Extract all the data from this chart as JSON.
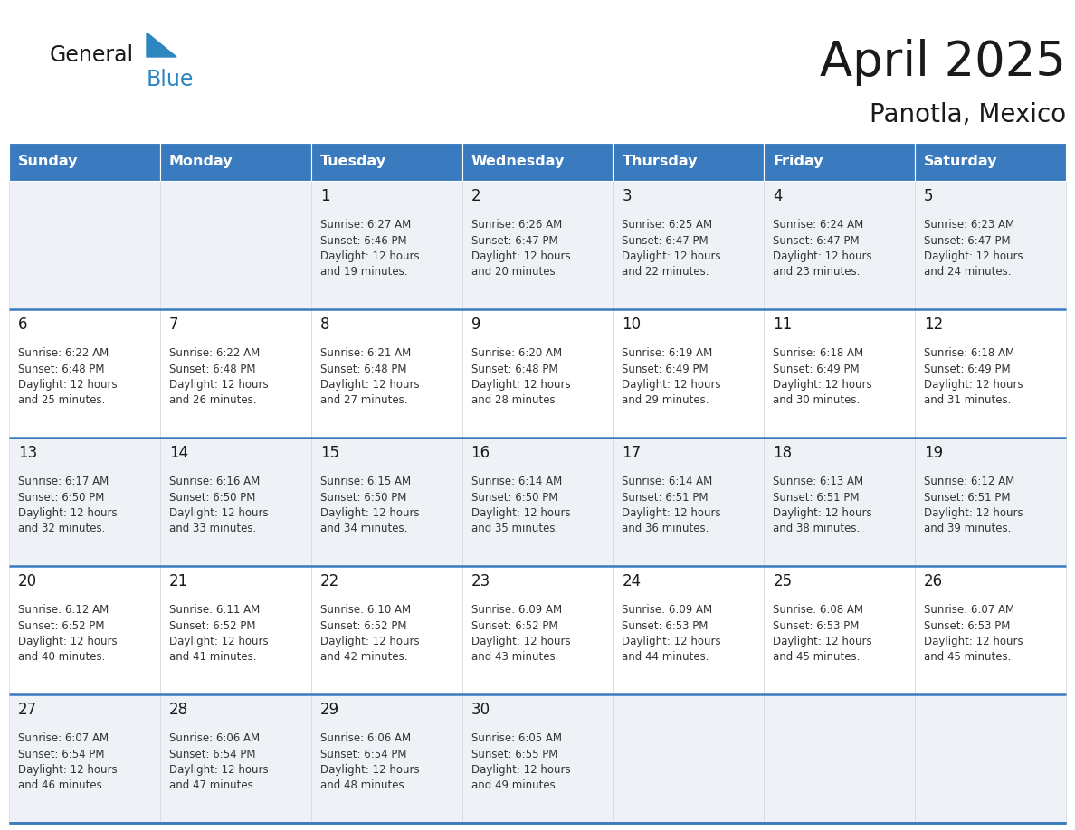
{
  "title": "April 2025",
  "subtitle": "Panotla, Mexico",
  "header_color": "#3a7abf",
  "header_text_color": "#ffffff",
  "cell_bg_even": "#eef2f7",
  "cell_bg_odd": "#ffffff",
  "text_color": "#333333",
  "days_of_week": [
    "Sunday",
    "Monday",
    "Tuesday",
    "Wednesday",
    "Thursday",
    "Friday",
    "Saturday"
  ],
  "weeks": [
    [
      {
        "day": "",
        "sunrise": "",
        "sunset": "",
        "daylight": ""
      },
      {
        "day": "",
        "sunrise": "",
        "sunset": "",
        "daylight": ""
      },
      {
        "day": "1",
        "sunrise": "6:27 AM",
        "sunset": "6:46 PM",
        "daylight": "12 hours\nand 19 minutes."
      },
      {
        "day": "2",
        "sunrise": "6:26 AM",
        "sunset": "6:47 PM",
        "daylight": "12 hours\nand 20 minutes."
      },
      {
        "day": "3",
        "sunrise": "6:25 AM",
        "sunset": "6:47 PM",
        "daylight": "12 hours\nand 22 minutes."
      },
      {
        "day": "4",
        "sunrise": "6:24 AM",
        "sunset": "6:47 PM",
        "daylight": "12 hours\nand 23 minutes."
      },
      {
        "day": "5",
        "sunrise": "6:23 AM",
        "sunset": "6:47 PM",
        "daylight": "12 hours\nand 24 minutes."
      }
    ],
    [
      {
        "day": "6",
        "sunrise": "6:22 AM",
        "sunset": "6:48 PM",
        "daylight": "12 hours\nand 25 minutes."
      },
      {
        "day": "7",
        "sunrise": "6:22 AM",
        "sunset": "6:48 PM",
        "daylight": "12 hours\nand 26 minutes."
      },
      {
        "day": "8",
        "sunrise": "6:21 AM",
        "sunset": "6:48 PM",
        "daylight": "12 hours\nand 27 minutes."
      },
      {
        "day": "9",
        "sunrise": "6:20 AM",
        "sunset": "6:48 PM",
        "daylight": "12 hours\nand 28 minutes."
      },
      {
        "day": "10",
        "sunrise": "6:19 AM",
        "sunset": "6:49 PM",
        "daylight": "12 hours\nand 29 minutes."
      },
      {
        "day": "11",
        "sunrise": "6:18 AM",
        "sunset": "6:49 PM",
        "daylight": "12 hours\nand 30 minutes."
      },
      {
        "day": "12",
        "sunrise": "6:18 AM",
        "sunset": "6:49 PM",
        "daylight": "12 hours\nand 31 minutes."
      }
    ],
    [
      {
        "day": "13",
        "sunrise": "6:17 AM",
        "sunset": "6:50 PM",
        "daylight": "12 hours\nand 32 minutes."
      },
      {
        "day": "14",
        "sunrise": "6:16 AM",
        "sunset": "6:50 PM",
        "daylight": "12 hours\nand 33 minutes."
      },
      {
        "day": "15",
        "sunrise": "6:15 AM",
        "sunset": "6:50 PM",
        "daylight": "12 hours\nand 34 minutes."
      },
      {
        "day": "16",
        "sunrise": "6:14 AM",
        "sunset": "6:50 PM",
        "daylight": "12 hours\nand 35 minutes."
      },
      {
        "day": "17",
        "sunrise": "6:14 AM",
        "sunset": "6:51 PM",
        "daylight": "12 hours\nand 36 minutes."
      },
      {
        "day": "18",
        "sunrise": "6:13 AM",
        "sunset": "6:51 PM",
        "daylight": "12 hours\nand 38 minutes."
      },
      {
        "day": "19",
        "sunrise": "6:12 AM",
        "sunset": "6:51 PM",
        "daylight": "12 hours\nand 39 minutes."
      }
    ],
    [
      {
        "day": "20",
        "sunrise": "6:12 AM",
        "sunset": "6:52 PM",
        "daylight": "12 hours\nand 40 minutes."
      },
      {
        "day": "21",
        "sunrise": "6:11 AM",
        "sunset": "6:52 PM",
        "daylight": "12 hours\nand 41 minutes."
      },
      {
        "day": "22",
        "sunrise": "6:10 AM",
        "sunset": "6:52 PM",
        "daylight": "12 hours\nand 42 minutes."
      },
      {
        "day": "23",
        "sunrise": "6:09 AM",
        "sunset": "6:52 PM",
        "daylight": "12 hours\nand 43 minutes."
      },
      {
        "day": "24",
        "sunrise": "6:09 AM",
        "sunset": "6:53 PM",
        "daylight": "12 hours\nand 44 minutes."
      },
      {
        "day": "25",
        "sunrise": "6:08 AM",
        "sunset": "6:53 PM",
        "daylight": "12 hours\nand 45 minutes."
      },
      {
        "day": "26",
        "sunrise": "6:07 AM",
        "sunset": "6:53 PM",
        "daylight": "12 hours\nand 45 minutes."
      }
    ],
    [
      {
        "day": "27",
        "sunrise": "6:07 AM",
        "sunset": "6:54 PM",
        "daylight": "12 hours\nand 46 minutes."
      },
      {
        "day": "28",
        "sunrise": "6:06 AM",
        "sunset": "6:54 PM",
        "daylight": "12 hours\nand 47 minutes."
      },
      {
        "day": "29",
        "sunrise": "6:06 AM",
        "sunset": "6:54 PM",
        "daylight": "12 hours\nand 48 minutes."
      },
      {
        "day": "30",
        "sunrise": "6:05 AM",
        "sunset": "6:55 PM",
        "daylight": "12 hours\nand 49 minutes."
      },
      {
        "day": "",
        "sunrise": "",
        "sunset": "",
        "daylight": ""
      },
      {
        "day": "",
        "sunrise": "",
        "sunset": "",
        "daylight": ""
      },
      {
        "day": "",
        "sunrise": "",
        "sunset": "",
        "daylight": ""
      }
    ]
  ],
  "logo_general_color": "#1a1a1a",
  "logo_blue_color": "#2e86c1"
}
